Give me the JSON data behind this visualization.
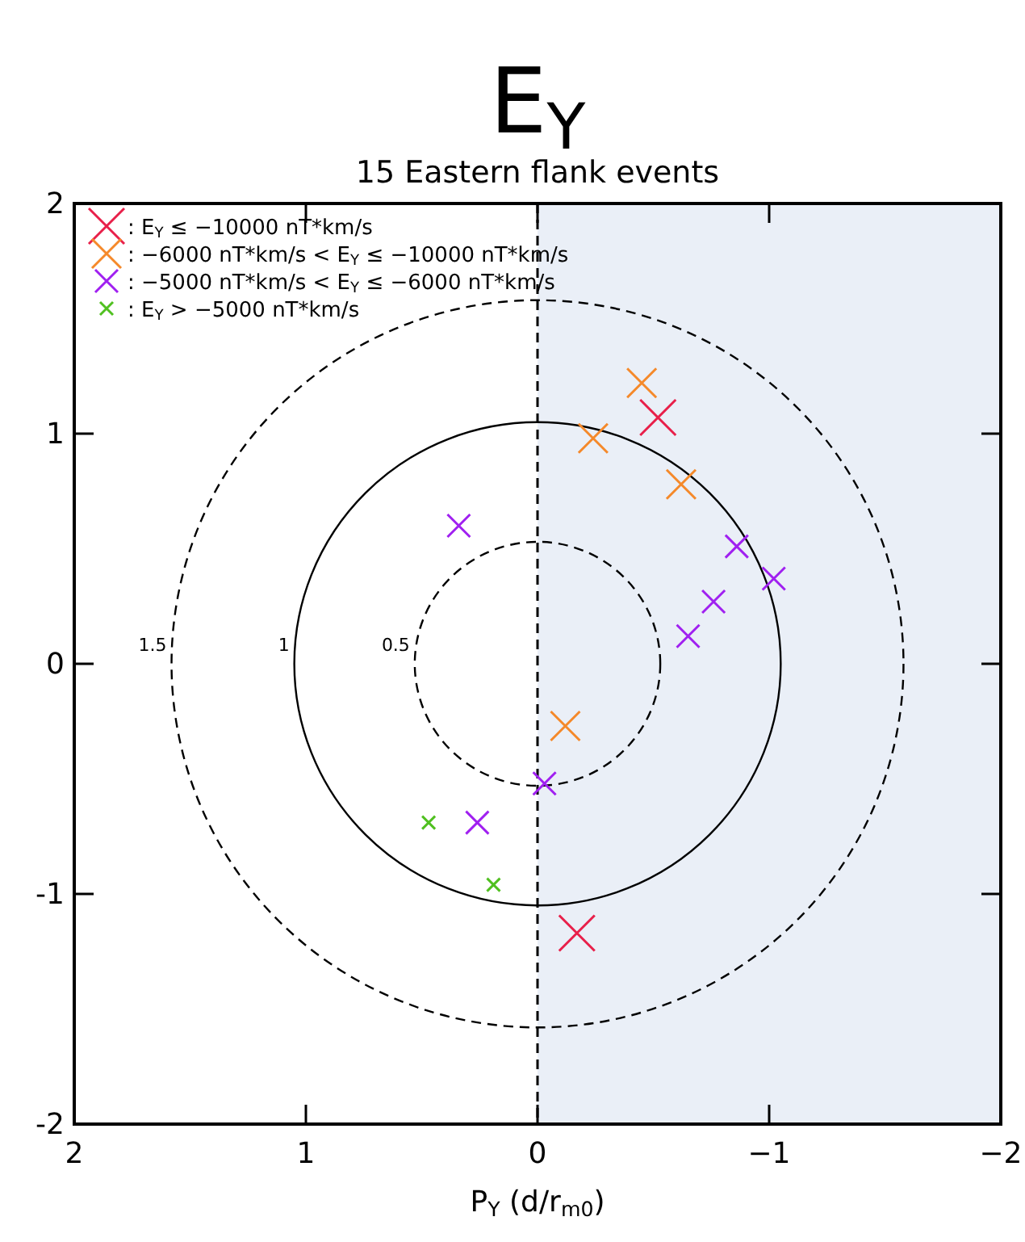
{
  "chart_data": {
    "type": "scatter",
    "title": "E$_{Y}$",
    "subtitle": "15 Eastern flank events",
    "xlabel": "P$_{Y}$  (d/r$_{m0}$)",
    "xlim": [
      2,
      -2
    ],
    "ylim": [
      -2,
      2
    ],
    "xticks": [
      2,
      1,
      0,
      {
        "value": -1,
        "label": "−1"
      },
      {
        "value": -2,
        "label": "−2"
      }
    ],
    "yticks": [
      -2,
      -1,
      0,
      1,
      2
    ],
    "legend": "top left",
    "marker": "cross",
    "bands": [
      {
        "axis": "x",
        "from": 0,
        "to": -2,
        "color": "#eaeff7"
      }
    ],
    "ref_lines": [
      {
        "axis": "x",
        "value": 0,
        "line_style": "dashed",
        "color": "#000000"
      }
    ],
    "annotations": [
      "0.5",
      "1",
      "1.5"
    ],
    "series": [
      {
        "name": ": E$_{Y}$ ≤ −10000 nT*km/s",
        "color": "#e8204a",
        "x": [
          -0.52,
          -0.17
        ],
        "values": [
          1.07,
          -1.17
        ]
      },
      {
        "name": ": −6000 nT*km/s < E$_{Y}$ ≤ −10000 nT*km/s",
        "color": "#f5892a",
        "x": [
          -0.45,
          -0.24,
          -0.62,
          -0.12
        ],
        "values": [
          1.22,
          0.98,
          0.78,
          -0.27
        ]
      },
      {
        "name": ": −5000 nT*km/s < E$_{Y}$ ≤ −6000 nT*km/s",
        "color": "#a020f0",
        "x": [
          0.34,
          -0.86,
          -1.02,
          -0.76,
          -0.65,
          -0.03,
          0.26
        ],
        "values": [
          0.6,
          0.51,
          0.37,
          0.27,
          0.12,
          -0.52,
          -0.69
        ]
      },
      {
        "name": ": E$_{Y}$ > −5000 nT*km/s",
        "color": "#50c020",
        "x": [
          0.47,
          0.19
        ],
        "values": [
          -0.69,
          -0.96
        ]
      }
    ]
  }
}
